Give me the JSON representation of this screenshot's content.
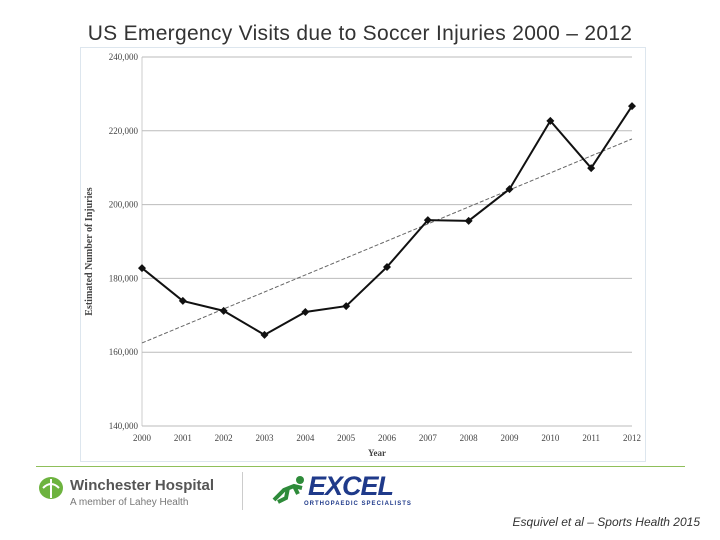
{
  "title": "US Emergency Visits due to Soccer Injuries 2000 – 2012",
  "chart_data": {
    "type": "line",
    "xlabel": "Year",
    "ylabel": "Estimated Number of Injuries",
    "x": [
      2000,
      2001,
      2002,
      2003,
      2004,
      2005,
      2006,
      2007,
      2008,
      2009,
      2010,
      2011,
      2012
    ],
    "x_tick_labels": [
      "2000",
      "2001",
      "2002",
      "2003",
      "2004",
      "2005",
      "2006",
      "2007",
      "2008",
      "2009",
      "2010",
      "2011",
      "2012"
    ],
    "series": [
      {
        "values": [
          182800,
          173900,
          171200,
          164700,
          170900,
          172500,
          183100,
          195800,
          195600,
          204200,
          222700,
          209900,
          226700
        ],
        "color": "#111111",
        "marker": "diamond"
      }
    ],
    "trendline": {
      "start": [
        2000,
        162500
      ],
      "end": [
        2012,
        217800
      ],
      "style": "dashed",
      "color": "#666666"
    },
    "ylim": [
      140000,
      240000
    ],
    "y_tick_labels": [
      "140,000",
      "160,000",
      "180,000",
      "200,000",
      "220,000",
      "240,000"
    ],
    "y_ticks": [
      140000,
      160000,
      180000,
      200000,
      220000,
      240000
    ],
    "grid": "horizontal"
  },
  "footer": {
    "logo1_name": "Winchester Hospital",
    "logo1_sub": "A member of Lahey Health",
    "logo2_name": "EXCEL",
    "logo2_sub": "ORTHOPAEDIC SPECIALISTS",
    "citation": "Esquivel et al – Sports Health 2015"
  }
}
